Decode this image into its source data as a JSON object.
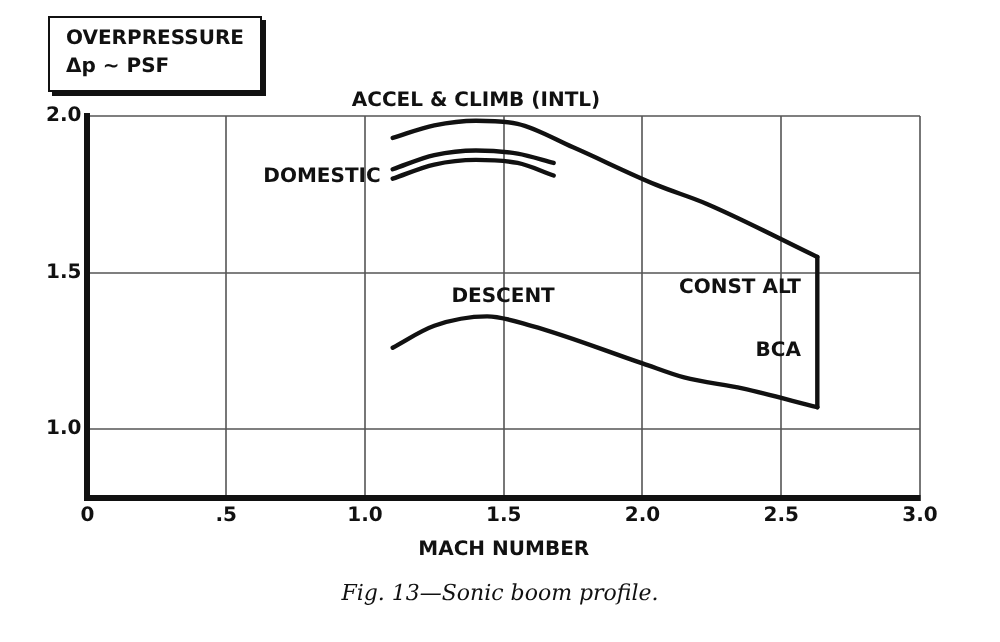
{
  "chart_data": {
    "type": "line",
    "ylabel": "OVERPRESSURE\nΔp ~ PSF",
    "xlabel": "MACH NUMBER",
    "xlim": [
      0,
      3.0
    ],
    "xticks": [
      {
        "value": 0,
        "label": "0"
      },
      {
        "value": 0.5,
        "label": ".5"
      },
      {
        "value": 1,
        "label": "1.0"
      },
      {
        "value": 1.5,
        "label": "1.5"
      },
      {
        "value": 2,
        "label": "2.0"
      },
      {
        "value": 2.5,
        "label": "2.5"
      },
      {
        "value": 3,
        "label": "3.0"
      }
    ],
    "ylim": [
      0.78,
      2.0
    ],
    "yticks": [
      {
        "value": 1,
        "label": "1.0"
      },
      {
        "value": 1.5,
        "label": "1.5"
      },
      {
        "value": 2,
        "label": "2.0"
      }
    ],
    "grid": true,
    "legend": false,
    "marker": "none",
    "line_style": "solid",
    "series": [
      {
        "name": "ACCEL & CLIMB (INTL)",
        "color": "#111111",
        "x": [
          1.1,
          1.25,
          1.4,
          1.55,
          1.75,
          2.05,
          2.23,
          2.63
        ],
        "values": [
          1.93,
          1.97,
          1.985,
          1.975,
          1.9,
          1.78,
          1.72,
          1.55
        ]
      },
      {
        "name": "DOMESTIC",
        "color": "#111111",
        "x": [
          1.1,
          1.25,
          1.4,
          1.55,
          1.68
        ],
        "values": [
          1.83,
          1.875,
          1.89,
          1.88,
          1.85
        ]
      },
      {
        "color": "#111111",
        "x": [
          1.1,
          1.25,
          1.4,
          1.55,
          1.68
        ],
        "values": [
          1.8,
          1.845,
          1.86,
          1.85,
          1.81
        ]
      },
      {
        "name": "DESCENT",
        "color": "#111111",
        "x": [
          1.1,
          1.25,
          1.44,
          1.6,
          2.0,
          2.15,
          2.36,
          2.63
        ],
        "values": [
          1.26,
          1.33,
          1.36,
          1.33,
          1.21,
          1.165,
          1.13,
          1.07
        ]
      },
      {
        "color": "#111111",
        "x": [
          2.63,
          2.63
        ],
        "values": [
          1.07,
          1.55
        ]
      }
    ],
    "annotations": [
      {
        "text": "CONST ALT",
        "x": 2.6,
        "y": 1.45
      },
      {
        "text": "BCA",
        "x": 2.6,
        "y": 1.25
      },
      "Fig. 13—Sonic boom profile."
    ]
  }
}
